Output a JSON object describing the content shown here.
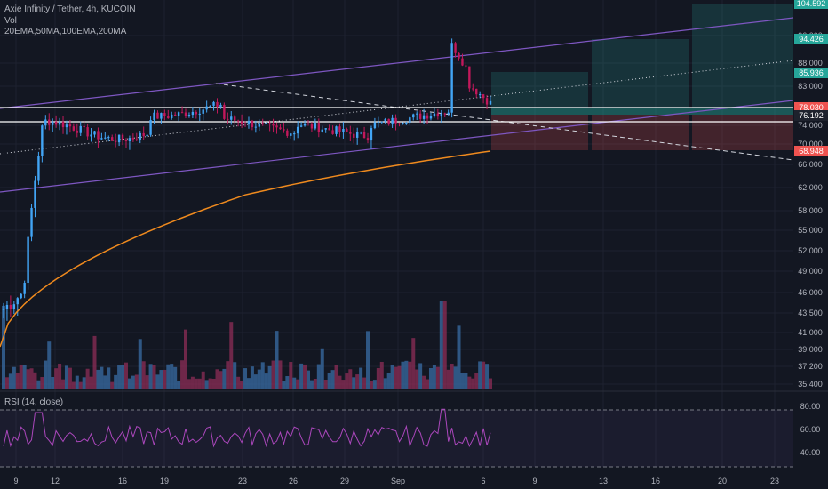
{
  "header": {
    "symbol_line": "Axie Infinity / Tether, 4h, KUCOIN",
    "vol_label": "Vol",
    "ma_line": "20EMA,50MA,100EMA,200MA"
  },
  "rsi": {
    "label": "RSI (14, close)",
    "ticks": [
      "80.00",
      "60.00",
      "40.00"
    ],
    "upper": 80,
    "lower": 20
  },
  "price_axis": {
    "ticks": [
      "96.000",
      "88.000",
      "83.000",
      "74.000",
      "70.000",
      "66.000",
      "62.000",
      "58.000",
      "55.000",
      "52.000",
      "49.000",
      "46.000",
      "43.500",
      "41.000",
      "39.000",
      "37.200",
      "35.400"
    ],
    "tags": [
      {
        "value": "104.592",
        "color": "#26a69a"
      },
      {
        "value": "94.426",
        "color": "#26a69a"
      },
      {
        "value": "85.936",
        "color": "#26a69a"
      },
      {
        "value": "78.030",
        "color": "#ef5350"
      },
      {
        "value": "76.192",
        "color": "#1e222d"
      },
      {
        "value": "68.948",
        "color": "#ef5350"
      }
    ]
  },
  "time_axis": {
    "ticks": [
      "9",
      "12",
      "16",
      "19",
      "23",
      "26",
      "29",
      "Sep",
      "6",
      "9",
      "13",
      "16",
      "20",
      "23"
    ]
  },
  "colors": {
    "bull": "#42a5f5",
    "bear": "#c2185b",
    "channel": "#7e57c2",
    "ma": "#ef8a1e",
    "profit_zone": "#26a69a",
    "loss_zone": "#ef5350",
    "rsi_line": "#ab47bc"
  },
  "chart_data": {
    "type": "candlestick",
    "title": "Axie Infinity / Tether, 4h, KUCOIN",
    "ylim": [
      35.4,
      104.6
    ],
    "trade_levels": {
      "targets": [
        85.936,
        94.426,
        104.592
      ],
      "entry": 78.03,
      "current": 76.192,
      "stop": 68.948
    },
    "indicators": [
      "20EMA",
      "50MA",
      "100EMA",
      "200MA",
      "RSI (14, close)",
      "Vol"
    ]
  }
}
